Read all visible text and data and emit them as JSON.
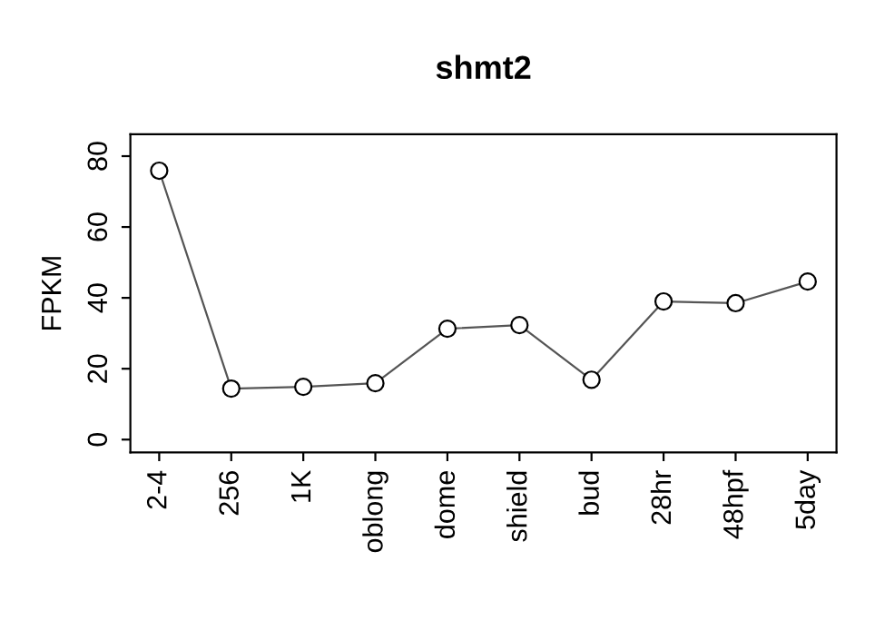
{
  "chart_data": {
    "type": "line",
    "title": "shmt2",
    "ylabel": "FPKM",
    "categories": [
      "2-4",
      "256",
      "1K",
      "oblong",
      "dome",
      "shield",
      "bud",
      "28hr",
      "48hpf",
      "5day"
    ],
    "series": [
      {
        "color": "#000000",
        "values": [
          75.9,
          14.4,
          14.9,
          15.9,
          31.3,
          32.3,
          16.9,
          39.0,
          38.5,
          44.6
        ]
      }
    ],
    "ylim": [
      -3.6,
      86.2
    ],
    "yticks": [
      0,
      20,
      40,
      60,
      80
    ],
    "marker": "circle",
    "line_style": "solid",
    "grid": false,
    "legend": false
  }
}
